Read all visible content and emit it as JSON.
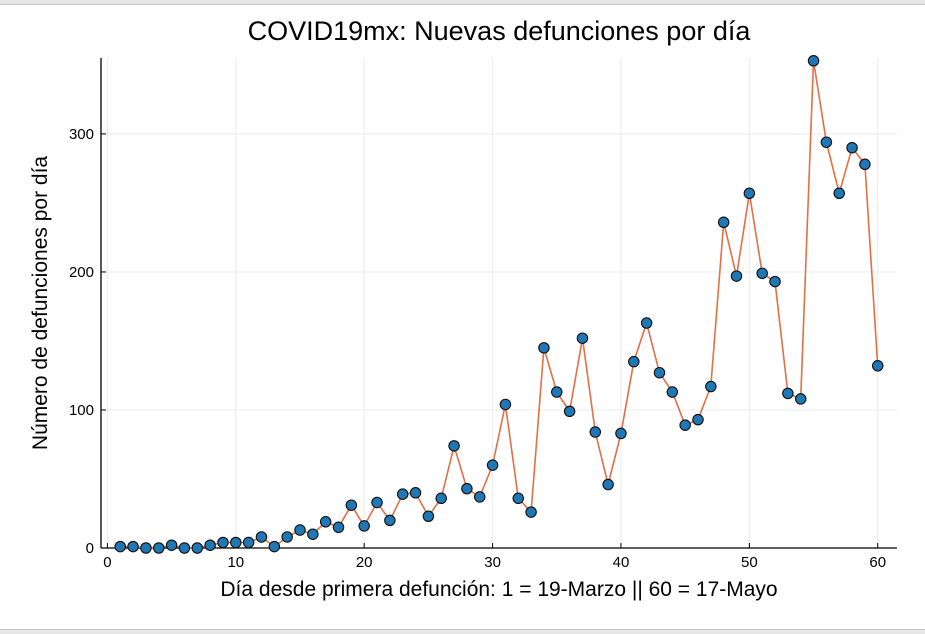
{
  "chart_data": {
    "type": "line",
    "title": "COVID19mx: Nuevas defunciones por día",
    "xlabel": "Día desde primera defunción: 1 = 19-Marzo || 60 = 17-Mayo",
    "ylabel": "Número de defunciones por día",
    "xlim": [
      -0.5,
      61.5
    ],
    "ylim": [
      0,
      355
    ],
    "xticks": [
      0,
      10,
      20,
      30,
      40,
      50,
      60
    ],
    "yticks": [
      0,
      100,
      200,
      300
    ],
    "grid": true,
    "legend": "none",
    "series": [
      {
        "x": [
          1,
          2,
          3,
          4,
          5,
          6,
          7,
          8,
          9,
          10,
          11,
          12,
          13,
          14,
          15,
          16,
          17,
          18,
          19,
          20,
          21,
          22,
          23,
          24,
          25,
          26,
          27,
          28,
          29,
          30,
          31,
          32,
          33,
          34,
          35,
          36,
          37,
          38,
          39,
          40,
          41,
          42,
          43,
          44,
          45,
          46,
          47,
          48,
          49,
          50,
          51,
          52,
          53,
          54,
          55,
          56,
          57,
          58,
          59,
          60
        ],
        "values": [
          1,
          1,
          0,
          0,
          2,
          0,
          0,
          2,
          4,
          4,
          4,
          8,
          1,
          8,
          13,
          10,
          19,
          15,
          31,
          16,
          33,
          20,
          39,
          40,
          23,
          36,
          74,
          43,
          37,
          60,
          104,
          36,
          26,
          145,
          113,
          99,
          152,
          84,
          46,
          83,
          135,
          163,
          127,
          113,
          89,
          93,
          117,
          236,
          197,
          257,
          199,
          193,
          112,
          108,
          353,
          294,
          257,
          290,
          278,
          132
        ],
        "line_color": "#e26f46",
        "marker_color": "#1f77b4"
      }
    ]
  }
}
